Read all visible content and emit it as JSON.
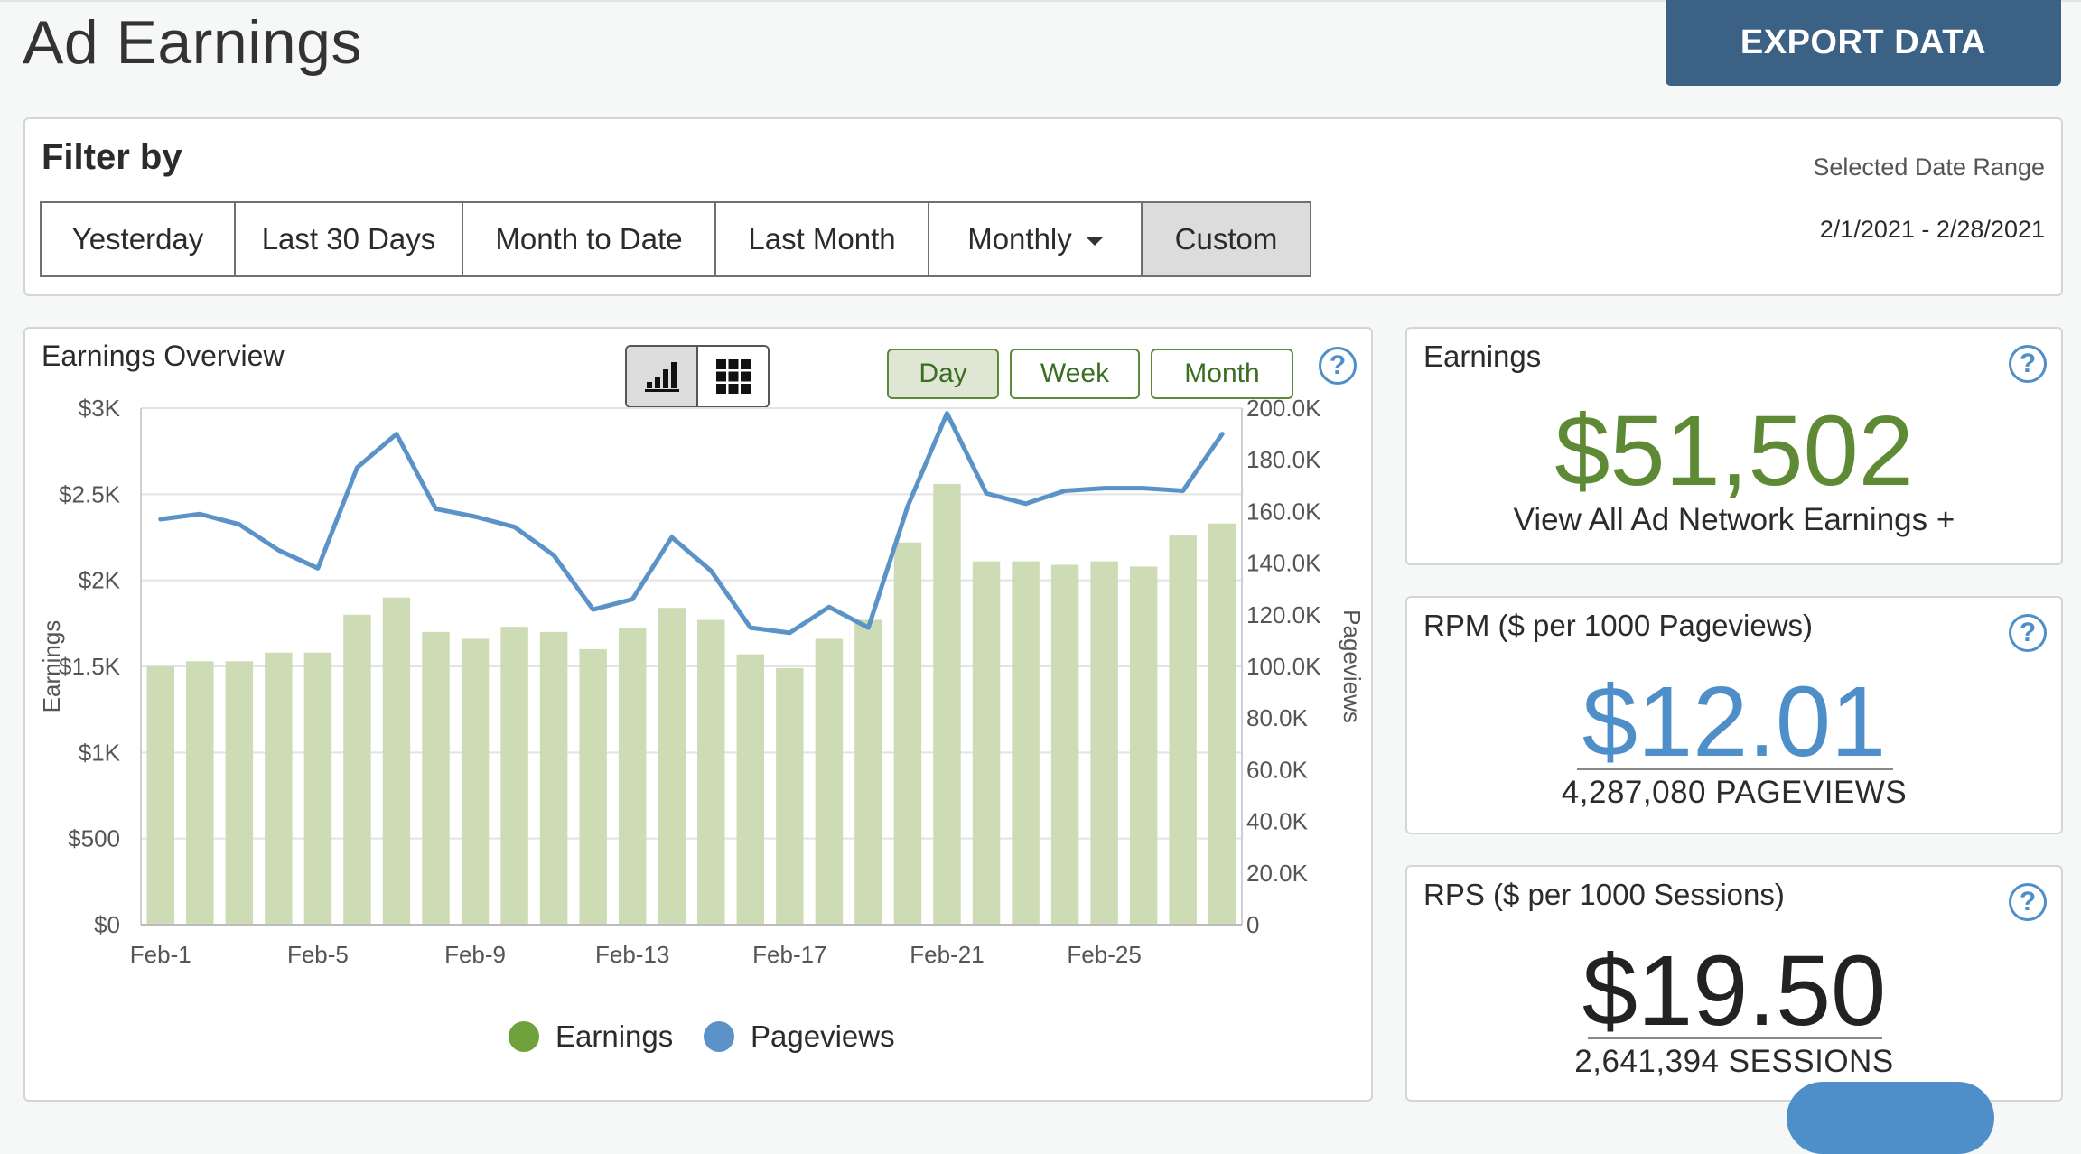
{
  "page": {
    "title": "Ad Earnings",
    "export_label": "EXPORT DATA"
  },
  "filter": {
    "title": "Filter by",
    "buttons": [
      "Yesterday",
      "Last 30 Days",
      "Month to Date",
      "Last Month",
      "Monthly",
      "Custom"
    ],
    "active": "Custom",
    "range_label": "Selected Date Range",
    "range_value": "2/1/2021 - 2/28/2021"
  },
  "overview": {
    "title": "Earnings Overview",
    "periods": [
      "Day",
      "Week",
      "Month"
    ],
    "active_period": "Day",
    "view_modes": [
      "bar-chart-icon",
      "grid-icon"
    ],
    "active_view": "bar-chart-icon"
  },
  "chart_data": {
    "type": "bar",
    "categories": [
      "Feb-1",
      "Feb-2",
      "Feb-3",
      "Feb-4",
      "Feb-5",
      "Feb-6",
      "Feb-7",
      "Feb-8",
      "Feb-9",
      "Feb-10",
      "Feb-11",
      "Feb-12",
      "Feb-13",
      "Feb-14",
      "Feb-15",
      "Feb-16",
      "Feb-17",
      "Feb-18",
      "Feb-19",
      "Feb-20",
      "Feb-21",
      "Feb-22",
      "Feb-23",
      "Feb-24",
      "Feb-25",
      "Feb-26",
      "Feb-27",
      "Feb-28"
    ],
    "x_tick_labels": [
      "Feb-1",
      "Feb-5",
      "Feb-9",
      "Feb-13",
      "Feb-17",
      "Feb-21",
      "Feb-25"
    ],
    "series": [
      {
        "name": "Earnings",
        "type": "bar",
        "axis": "left",
        "color": "#cddcb5",
        "legend_color": "#6fa23d",
        "values": [
          1500,
          1530,
          1530,
          1580,
          1580,
          1800,
          1900,
          1700,
          1660,
          1730,
          1700,
          1600,
          1720,
          1840,
          1770,
          1570,
          1490,
          1660,
          1770,
          2220,
          2560,
          2110,
          2110,
          2090,
          2110,
          2080,
          2260,
          2330
        ]
      },
      {
        "name": "Pageviews",
        "type": "line",
        "axis": "right",
        "color": "#5b93c8",
        "legend_color": "#5b93c8",
        "values": [
          157000,
          159000,
          155000,
          145000,
          138000,
          177000,
          190000,
          161000,
          158000,
          154000,
          143000,
          122000,
          126000,
          150000,
          137000,
          115000,
          113000,
          123000,
          115000,
          162000,
          198000,
          167000,
          163000,
          168000,
          169000,
          169000,
          168000,
          190000
        ]
      }
    ],
    "ylabel": "Earnings",
    "y2label": "Pageviews",
    "ylim": [
      0,
      3000
    ],
    "y2lim": [
      0,
      200000
    ],
    "y_tick_labels": [
      "$0",
      "$500",
      "$1K",
      "$1.5K",
      "$2K",
      "$2.5K",
      "$3K"
    ],
    "y2_tick_labels": [
      "0",
      "20.0K",
      "40.0K",
      "60.0K",
      "80.0K",
      "100.0K",
      "120.0K",
      "140.0K",
      "160.0K",
      "180.0K",
      "200.0K"
    ],
    "legend": [
      "Earnings",
      "Pageviews"
    ],
    "legend_position": "bottom",
    "grid": true
  },
  "earnings_card": {
    "title": "Earnings",
    "value": "$51,502",
    "link": "View All Ad Network Earnings +"
  },
  "rpm_card": {
    "title": "RPM ($ per 1000 Pageviews)",
    "value": "$12.01",
    "sub": "4,287,080 PAGEVIEWS"
  },
  "rps_card": {
    "title": "RPS ($ per 1000 Sessions)",
    "value": "$19.50",
    "sub": "2,641,394 SESSIONS"
  },
  "help_symbol": "?"
}
